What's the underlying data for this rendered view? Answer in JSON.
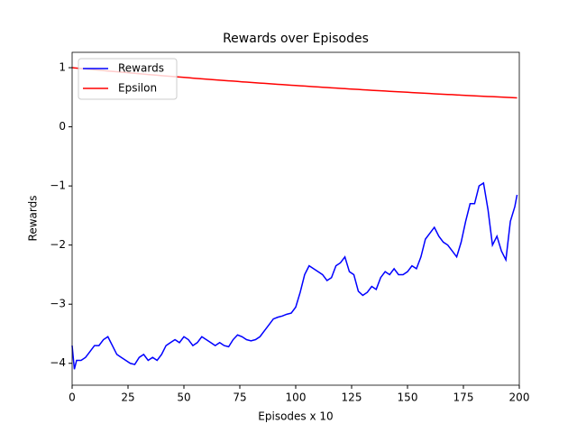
{
  "chart_data": {
    "type": "line",
    "title": "Rewards over Episodes",
    "xlabel": "Episodes x 10",
    "ylabel": "Rewards",
    "x": [
      0,
      1,
      2,
      4,
      6,
      8,
      10,
      12,
      14,
      16,
      18,
      20,
      22,
      24,
      26,
      28,
      30,
      32,
      34,
      36,
      38,
      40,
      42,
      44,
      46,
      48,
      50,
      52,
      54,
      56,
      58,
      60,
      62,
      64,
      66,
      68,
      70,
      72,
      74,
      76,
      78,
      80,
      82,
      84,
      86,
      88,
      90,
      92,
      94,
      96,
      98,
      100,
      102,
      104,
      106,
      108,
      110,
      112,
      114,
      116,
      118,
      120,
      122,
      124,
      126,
      128,
      130,
      132,
      134,
      136,
      138,
      140,
      142,
      144,
      146,
      148,
      150,
      152,
      154,
      156,
      158,
      160,
      162,
      164,
      166,
      168,
      170,
      172,
      174,
      176,
      178,
      180,
      182,
      184,
      186,
      188,
      190,
      192,
      194,
      196,
      198,
      199
    ],
    "series": [
      {
        "name": "Rewards",
        "color": "#0000ff",
        "values": [
          -3.7,
          -4.1,
          -3.95,
          -3.95,
          -3.9,
          -3.8,
          -3.7,
          -3.7,
          -3.6,
          -3.55,
          -3.7,
          -3.85,
          -3.9,
          -3.95,
          -4.0,
          -4.02,
          -3.9,
          -3.85,
          -3.95,
          -3.9,
          -3.95,
          -3.85,
          -3.7,
          -3.65,
          -3.6,
          -3.65,
          -3.55,
          -3.6,
          -3.7,
          -3.65,
          -3.55,
          -3.6,
          -3.65,
          -3.7,
          -3.65,
          -3.7,
          -3.72,
          -3.6,
          -3.52,
          -3.55,
          -3.6,
          -3.62,
          -3.6,
          -3.55,
          -3.45,
          -3.35,
          -3.25,
          -3.22,
          -3.2,
          -3.17,
          -3.15,
          -3.05,
          -2.8,
          -2.5,
          -2.35,
          -2.4,
          -2.45,
          -2.5,
          -2.6,
          -2.55,
          -2.35,
          -2.3,
          -2.2,
          -2.45,
          -2.5,
          -2.78,
          -2.85,
          -2.8,
          -2.7,
          -2.75,
          -2.55,
          -2.45,
          -2.5,
          -2.4,
          -2.5,
          -2.5,
          -2.45,
          -2.35,
          -2.4,
          -2.2,
          -1.9,
          -1.8,
          -1.7,
          -1.85,
          -1.95,
          -2.0,
          -2.1,
          -2.2,
          -1.95,
          -1.6,
          -1.3,
          -1.3,
          -1.0,
          -0.95,
          -1.4,
          -2.0,
          -1.85,
          -2.1,
          -2.25,
          -1.6,
          -1.35,
          -1.15
        ]
      },
      {
        "name": "Epsilon",
        "color": "#ff0000",
        "values": [
          1.0,
          0.996,
          0.993,
          0.986,
          0.979,
          0.972,
          0.965,
          0.958,
          0.951,
          0.944,
          0.937,
          0.931,
          0.924,
          0.918,
          0.911,
          0.905,
          0.898,
          0.892,
          0.885,
          0.879,
          0.873,
          0.866,
          0.86,
          0.854,
          0.848,
          0.842,
          0.836,
          0.83,
          0.824,
          0.818,
          0.812,
          0.807,
          0.801,
          0.795,
          0.789,
          0.784,
          0.778,
          0.773,
          0.767,
          0.761,
          0.756,
          0.751,
          0.745,
          0.74,
          0.735,
          0.729,
          0.724,
          0.719,
          0.714,
          0.709,
          0.704,
          0.699,
          0.694,
          0.689,
          0.684,
          0.679,
          0.674,
          0.669,
          0.665,
          0.66,
          0.655,
          0.65,
          0.646,
          0.641,
          0.636,
          0.632,
          0.627,
          0.623,
          0.618,
          0.614,
          0.609,
          0.605,
          0.601,
          0.597,
          0.592,
          0.588,
          0.584,
          0.58,
          0.576,
          0.571,
          0.567,
          0.563,
          0.559,
          0.555,
          0.551,
          0.547,
          0.544,
          0.54,
          0.536,
          0.532,
          0.528,
          0.524,
          0.521,
          0.517,
          0.513,
          0.51,
          0.506,
          0.502,
          0.499,
          0.495,
          0.492,
          0.49
        ]
      }
    ],
    "xlim": [
      0,
      200
    ],
    "xticks": [
      0,
      25,
      50,
      75,
      100,
      125,
      150,
      175,
      200
    ],
    "ylim": [
      -4.37,
      1.26
    ],
    "yticks": [
      {
        "value": -4,
        "label": "−4"
      },
      {
        "value": -3,
        "label": "−3"
      },
      {
        "value": -2,
        "label": "−2"
      },
      {
        "value": -1,
        "label": "−1"
      },
      0,
      1
    ],
    "legend": "upper left"
  }
}
